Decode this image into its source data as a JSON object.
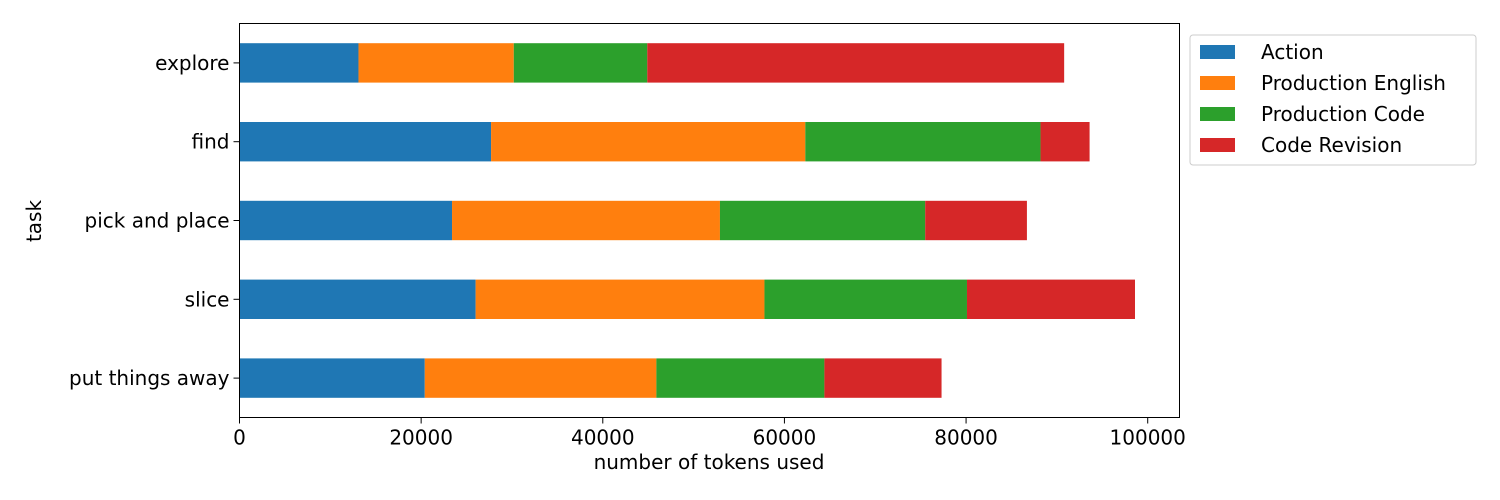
{
  "chart_data": {
    "type": "bar",
    "orientation": "horizontal",
    "stacked": true,
    "categories": [
      "explore",
      "find",
      "pick and place",
      "slice",
      "put things away"
    ],
    "series": [
      {
        "name": "Action",
        "color": "#1f77b4",
        "values": [
          13100,
          27700,
          23400,
          26000,
          20400
        ]
      },
      {
        "name": "Production English",
        "color": "#ff7f0e",
        "values": [
          17100,
          34600,
          29500,
          31800,
          25500
        ]
      },
      {
        "name": "Production Code",
        "color": "#2ca02c",
        "values": [
          14700,
          25900,
          22600,
          22300,
          18500
        ]
      },
      {
        "name": "Code Revision",
        "color": "#d62728",
        "values": [
          45900,
          5400,
          11200,
          18500,
          12900
        ]
      }
    ],
    "xlabel": "number of tokens used",
    "ylabel": "task",
    "xlim": [
      0,
      103500
    ],
    "xticks": [
      0,
      20000,
      40000,
      60000,
      80000,
      100000
    ],
    "xtick_labels": [
      "0",
      "20000",
      "40000",
      "60000",
      "80000",
      "100000"
    ],
    "grid": false,
    "legend_position": "outside-top-right"
  }
}
